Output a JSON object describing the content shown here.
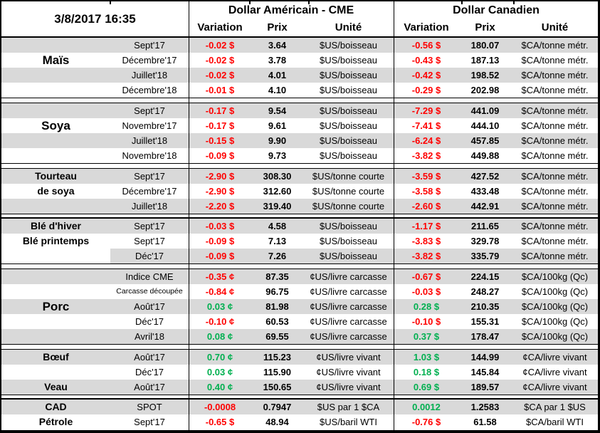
{
  "title_datetime": "3/8/2017 16:35",
  "groups": {
    "us": "Dollar Américain - CME",
    "ca": "Dollar Canadien"
  },
  "columns": {
    "variation": "Variation",
    "prix": "Prix",
    "unite": "Unité"
  },
  "colors": {
    "negative": "#FF0000",
    "positive": "#00B050",
    "band": "#D9D9D9"
  },
  "sections": [
    {
      "id": "mais",
      "thick_top": false,
      "rows": [
        {
          "label": "",
          "month": "Sept'17",
          "shade": "band",
          "us": {
            "var": "-0.02 $",
            "dir": "neg",
            "prix": "3.64",
            "unit": "$US/boisseau"
          },
          "ca": {
            "var": "-0.56 $",
            "dir": "neg",
            "prix": "180.07",
            "unit": "$CA/tonne métr."
          }
        },
        {
          "label": "Maïs",
          "label_style": "lg",
          "month": "Décembre'17",
          "shade": "white",
          "us": {
            "var": "-0.02 $",
            "dir": "neg",
            "prix": "3.78",
            "unit": "$US/boisseau"
          },
          "ca": {
            "var": "-0.43 $",
            "dir": "neg",
            "prix": "187.13",
            "unit": "$CA/tonne métr."
          }
        },
        {
          "label": "",
          "month": "Juillet'18",
          "shade": "band",
          "us": {
            "var": "-0.02 $",
            "dir": "neg",
            "prix": "4.01",
            "unit": "$US/boisseau"
          },
          "ca": {
            "var": "-0.42 $",
            "dir": "neg",
            "prix": "198.52",
            "unit": "$CA/tonne métr."
          }
        },
        {
          "label": "",
          "month": "Décembre'18",
          "shade": "white",
          "us": {
            "var": "-0.01 $",
            "dir": "neg",
            "prix": "4.10",
            "unit": "$US/boisseau"
          },
          "ca": {
            "var": "-0.29 $",
            "dir": "neg",
            "prix": "202.98",
            "unit": "$CA/tonne métr."
          }
        }
      ]
    },
    {
      "id": "soya",
      "thick_top": false,
      "rows": [
        {
          "label": "",
          "month": "Sept'17",
          "shade": "band",
          "us": {
            "var": "-0.17 $",
            "dir": "neg",
            "prix": "9.54",
            "unit": "$US/boisseau"
          },
          "ca": {
            "var": "-7.29 $",
            "dir": "neg",
            "prix": "441.09",
            "unit": "$CA/tonne métr."
          }
        },
        {
          "label": "Soya",
          "label_style": "lg",
          "month": "Novembre'17",
          "shade": "white",
          "us": {
            "var": "-0.17 $",
            "dir": "neg",
            "prix": "9.61",
            "unit": "$US/boisseau"
          },
          "ca": {
            "var": "-7.41 $",
            "dir": "neg",
            "prix": "444.10",
            "unit": "$CA/tonne métr."
          }
        },
        {
          "label": "",
          "month": "Juillet'18",
          "shade": "band",
          "us": {
            "var": "-0.15 $",
            "dir": "neg",
            "prix": "9.90",
            "unit": "$US/boisseau"
          },
          "ca": {
            "var": "-6.24 $",
            "dir": "neg",
            "prix": "457.85",
            "unit": "$CA/tonne métr."
          }
        },
        {
          "label": "",
          "month": "Novembre'18",
          "shade": "white",
          "us": {
            "var": "-0.09 $",
            "dir": "neg",
            "prix": "9.73",
            "unit": "$US/boisseau"
          },
          "ca": {
            "var": "-3.82 $",
            "dir": "neg",
            "prix": "449.88",
            "unit": "$CA/tonne métr."
          }
        }
      ]
    },
    {
      "id": "tourteau",
      "thick_top": false,
      "rows": [
        {
          "label": "Tourteau",
          "label_style": "md",
          "month": "Sept'17",
          "shade": "band",
          "us": {
            "var": "-2.90 $",
            "dir": "neg",
            "prix": "308.30",
            "unit": "$US/tonne courte"
          },
          "ca": {
            "var": "-3.59 $",
            "dir": "neg",
            "prix": "427.52",
            "unit": "$CA/tonne métr."
          }
        },
        {
          "label": "de soya",
          "label_style": "md",
          "month": "Décembre'17",
          "shade": "white",
          "us": {
            "var": "-2.90 $",
            "dir": "neg",
            "prix": "312.60",
            "unit": "$US/tonne courte"
          },
          "ca": {
            "var": "-3.58 $",
            "dir": "neg",
            "prix": "433.48",
            "unit": "$CA/tonne métr."
          }
        },
        {
          "label": "",
          "month": "Juillet'18",
          "shade": "band",
          "us": {
            "var": "-2.20 $",
            "dir": "neg",
            "prix": "319.40",
            "unit": "$US/tonne courte"
          },
          "ca": {
            "var": "-2.60 $",
            "dir": "neg",
            "prix": "442.91",
            "unit": "$CA/tonne métr."
          }
        }
      ]
    },
    {
      "id": "ble",
      "thick_top": true,
      "rows": [
        {
          "label": "Blé d'hiver",
          "label_style": "md",
          "month": "Sept'17",
          "shade": "band",
          "us": {
            "var": "-0.03 $",
            "dir": "neg",
            "prix": "4.58",
            "unit": "$US/boisseau"
          },
          "ca": {
            "var": "-1.17 $",
            "dir": "neg",
            "prix": "211.65",
            "unit": "$CA/tonne métr."
          }
        },
        {
          "label": "Blé printemps",
          "label_style": "md",
          "month": "Sept'17",
          "shade": "white",
          "us": {
            "var": "-0.09 $",
            "dir": "neg",
            "prix": "7.13",
            "unit": "$US/boisseau"
          },
          "ca": {
            "var": "-3.83 $",
            "dir": "neg",
            "prix": "329.78",
            "unit": "$CA/tonne métr."
          }
        },
        {
          "label": "",
          "month": "Déc'17",
          "shade": "band-from-month",
          "us": {
            "var": "-0.09 $",
            "dir": "neg",
            "prix": "7.26",
            "unit": "$US/boisseau"
          },
          "ca": {
            "var": "-3.82 $",
            "dir": "neg",
            "prix": "335.79",
            "unit": "$CA/tonne métr."
          }
        }
      ]
    },
    {
      "id": "porc",
      "thick_top": false,
      "rows": [
        {
          "label": "",
          "month": "Indice CME",
          "shade": "band",
          "us": {
            "var": "-0.35 ¢",
            "dir": "neg",
            "prix": "87.35",
            "unit": "¢US/livre carcasse"
          },
          "ca": {
            "var": "-0.67 $",
            "dir": "neg",
            "prix": "224.15",
            "unit": "$CA/100kg (Qc)"
          }
        },
        {
          "label": "",
          "month": "Carcasse découpée",
          "month_small": true,
          "shade": "white",
          "us": {
            "var": "-0.84 ¢",
            "dir": "neg",
            "prix": "96.75",
            "unit": "¢US/livre carcasse"
          },
          "ca": {
            "var": "-0.03 $",
            "dir": "neg",
            "prix": "248.27",
            "unit": "$CA/100kg (Qc)"
          }
        },
        {
          "label": "Porc",
          "label_style": "lg",
          "month": "Août'17",
          "shade": "band",
          "us": {
            "var": "0.03 ¢",
            "dir": "pos",
            "prix": "81.98",
            "unit": "¢US/livre carcasse"
          },
          "ca": {
            "var": "0.28 $",
            "dir": "pos",
            "prix": "210.35",
            "unit": "$CA/100kg (Qc)"
          }
        },
        {
          "label": "",
          "month": "Déc'17",
          "shade": "white",
          "us": {
            "var": "-0.10 ¢",
            "dir": "neg",
            "prix": "60.53",
            "unit": "¢US/livre carcasse"
          },
          "ca": {
            "var": "-0.10 $",
            "dir": "neg",
            "prix": "155.31",
            "unit": "$CA/100kg (Qc)"
          }
        },
        {
          "label": "",
          "month": "Avril'18",
          "shade": "band",
          "us": {
            "var": "0.08 ¢",
            "dir": "pos",
            "prix": "69.55",
            "unit": "¢US/livre carcasse"
          },
          "ca": {
            "var": "0.37 $",
            "dir": "pos",
            "prix": "178.47",
            "unit": "$CA/100kg (Qc)"
          }
        }
      ]
    },
    {
      "id": "boeuf-veau",
      "thick_top": false,
      "rows": [
        {
          "label": "Bœuf",
          "label_style": "md",
          "month": "Août'17",
          "shade": "band",
          "us": {
            "var": "0.70 ¢",
            "dir": "pos",
            "prix": "115.23",
            "unit": "¢US/livre vivant"
          },
          "ca": {
            "var": "1.03 $",
            "dir": "pos",
            "prix": "144.99",
            "unit": "¢CA/livre vivant"
          }
        },
        {
          "label": "",
          "month": "Déc'17",
          "shade": "white",
          "us": {
            "var": "0.03 ¢",
            "dir": "pos",
            "prix": "115.90",
            "unit": "¢US/livre vivant"
          },
          "ca": {
            "var": "0.18 $",
            "dir": "pos",
            "prix": "145.84",
            "unit": "¢CA/livre vivant"
          }
        },
        {
          "label": "Veau",
          "label_style": "md",
          "month": "Août'17",
          "shade": "band",
          "us": {
            "var": "0.40 ¢",
            "dir": "pos",
            "prix": "150.65",
            "unit": "¢US/livre vivant"
          },
          "ca": {
            "var": "0.69 $",
            "dir": "pos",
            "prix": "189.57",
            "unit": "¢CA/livre vivant"
          }
        }
      ]
    },
    {
      "id": "cad-petrole",
      "thick_top": true,
      "rows": [
        {
          "label": "CAD",
          "label_style": "md",
          "month": "SPOT",
          "shade": "band",
          "us": {
            "var": "-0.0008",
            "dir": "neg",
            "prix": "0.7947",
            "unit": "$US par 1 $CA"
          },
          "ca": {
            "var": "0.0012",
            "dir": "pos",
            "prix": "1.2583",
            "unit": "$CA par 1 $US"
          }
        },
        {
          "label": "Pétrole",
          "label_style": "md",
          "month": "Sept'17",
          "shade": "white",
          "us": {
            "var": "-0.65 $",
            "dir": "neg",
            "prix": "48.94",
            "unit": "$US/baril WTI"
          },
          "ca": {
            "var": "-0.76 $",
            "dir": "neg",
            "prix": "61.58",
            "unit": "$CA/baril WTI"
          }
        }
      ]
    }
  ]
}
